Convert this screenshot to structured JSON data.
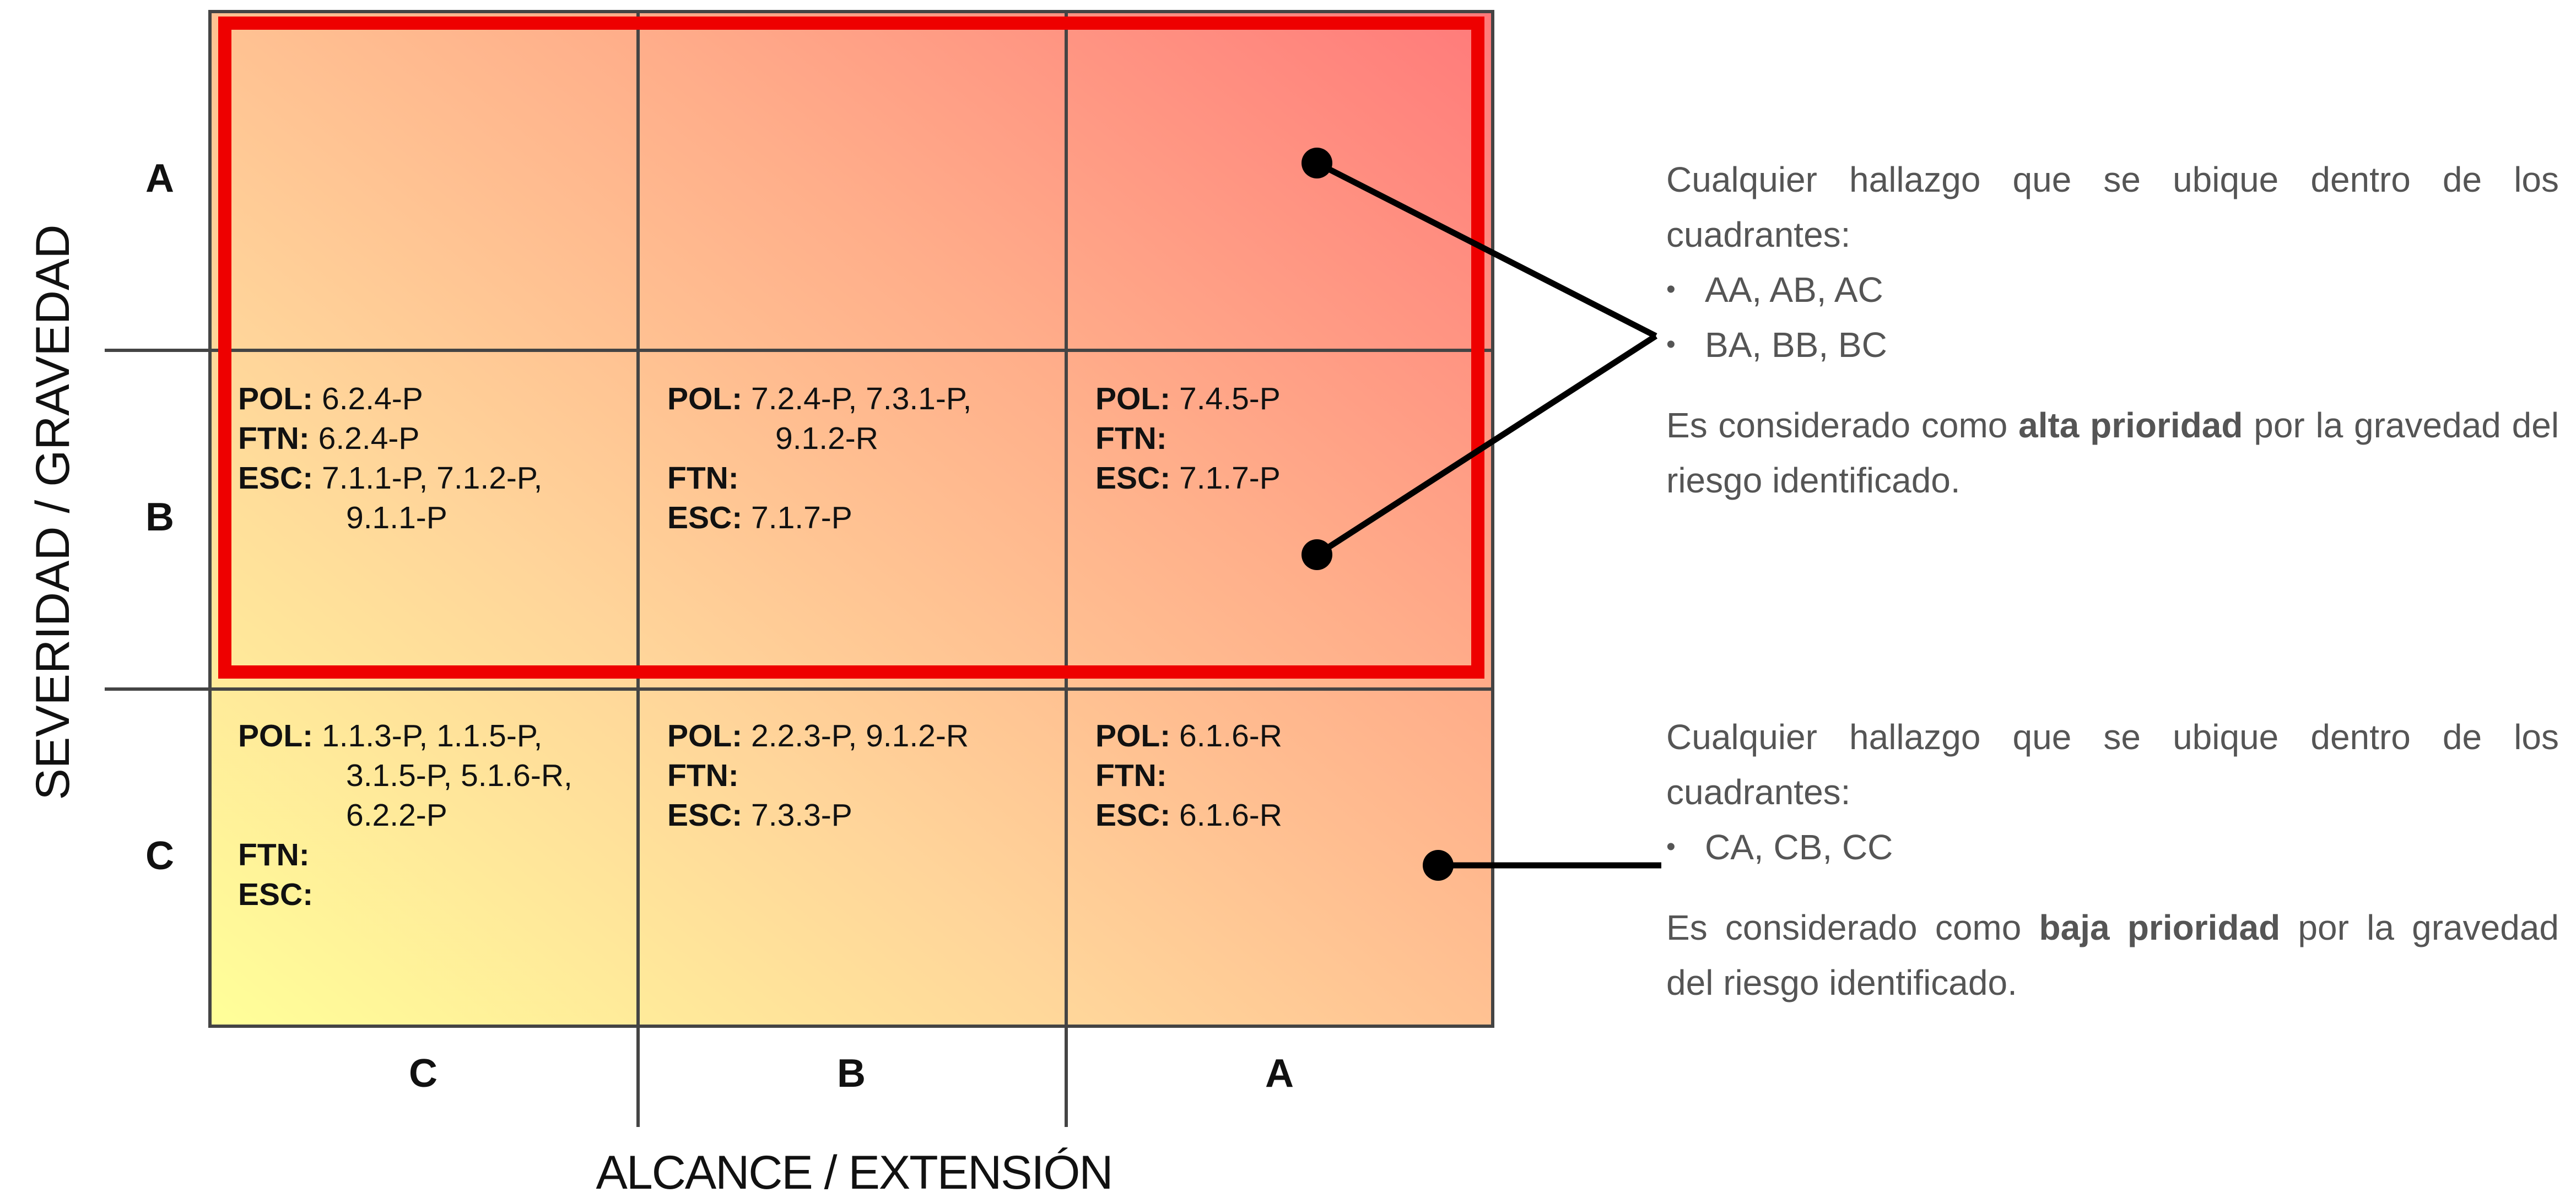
{
  "axes": {
    "x_title": "ALCANCE / EXTENSIÓN",
    "y_title": "SEVERIDAD / GRAVEDAD"
  },
  "row_labels": [
    "A",
    "B",
    "C"
  ],
  "col_labels": [
    "C",
    "B",
    "A"
  ],
  "cells": {
    "BC": {
      "pol": "6.2.4-P",
      "ftn": "6.2.4-P",
      "esc": "7.1.1-P, 7.1.2-P,",
      "esc2": "9.1.1-P"
    },
    "BB": {
      "pol": "7.2.4-P, 7.3.1-P,",
      "pol2": "9.1.2-R",
      "ftn": "",
      "esc": "7.1.7-P"
    },
    "BA": {
      "pol": "7.4.5-P",
      "ftn": "",
      "esc": "7.1.7-P"
    },
    "CC": {
      "pol": "1.1.3-P, 1.1.5-P,",
      "pol2": "3.1.5-P, 5.1.6-R,",
      "pol3": "6.2.2-P",
      "ftn": "",
      "esc": ""
    },
    "CB": {
      "pol": "2.2.3-P, 9.1.2-R",
      "ftn": "",
      "esc": "7.3.3-P"
    },
    "CA": {
      "pol": "6.1.6-R",
      "ftn": "",
      "esc": "6.1.6-R"
    }
  },
  "labels": {
    "pol": "POL:",
    "ftn": "FTN:",
    "esc": "ESC:"
  },
  "notes": {
    "high": {
      "intro": "Cualquier hallazgo que se ubique dentro de los cuadrantes:",
      "bullets": [
        "AA, AB, AC",
        "BA, BB, BC"
      ],
      "pre": "Es considerado como",
      "bold": "alta prioridad",
      "post": "por la gravedad del riesgo identificado."
    },
    "low": {
      "intro": "Cualquier hallazgo que se ubique dentro de los cuadrantes:",
      "bullets": [
        "CA, CB, CC"
      ],
      "pre": "Es considerado como",
      "bold": "baja prioridad",
      "post": "por la gravedad del riesgo identificado."
    }
  },
  "bullet_glyph": "•",
  "colors": {
    "highlight": "#ee0000",
    "grid": "#444444",
    "low": "#ffff99",
    "high": "#ff7a7a"
  }
}
